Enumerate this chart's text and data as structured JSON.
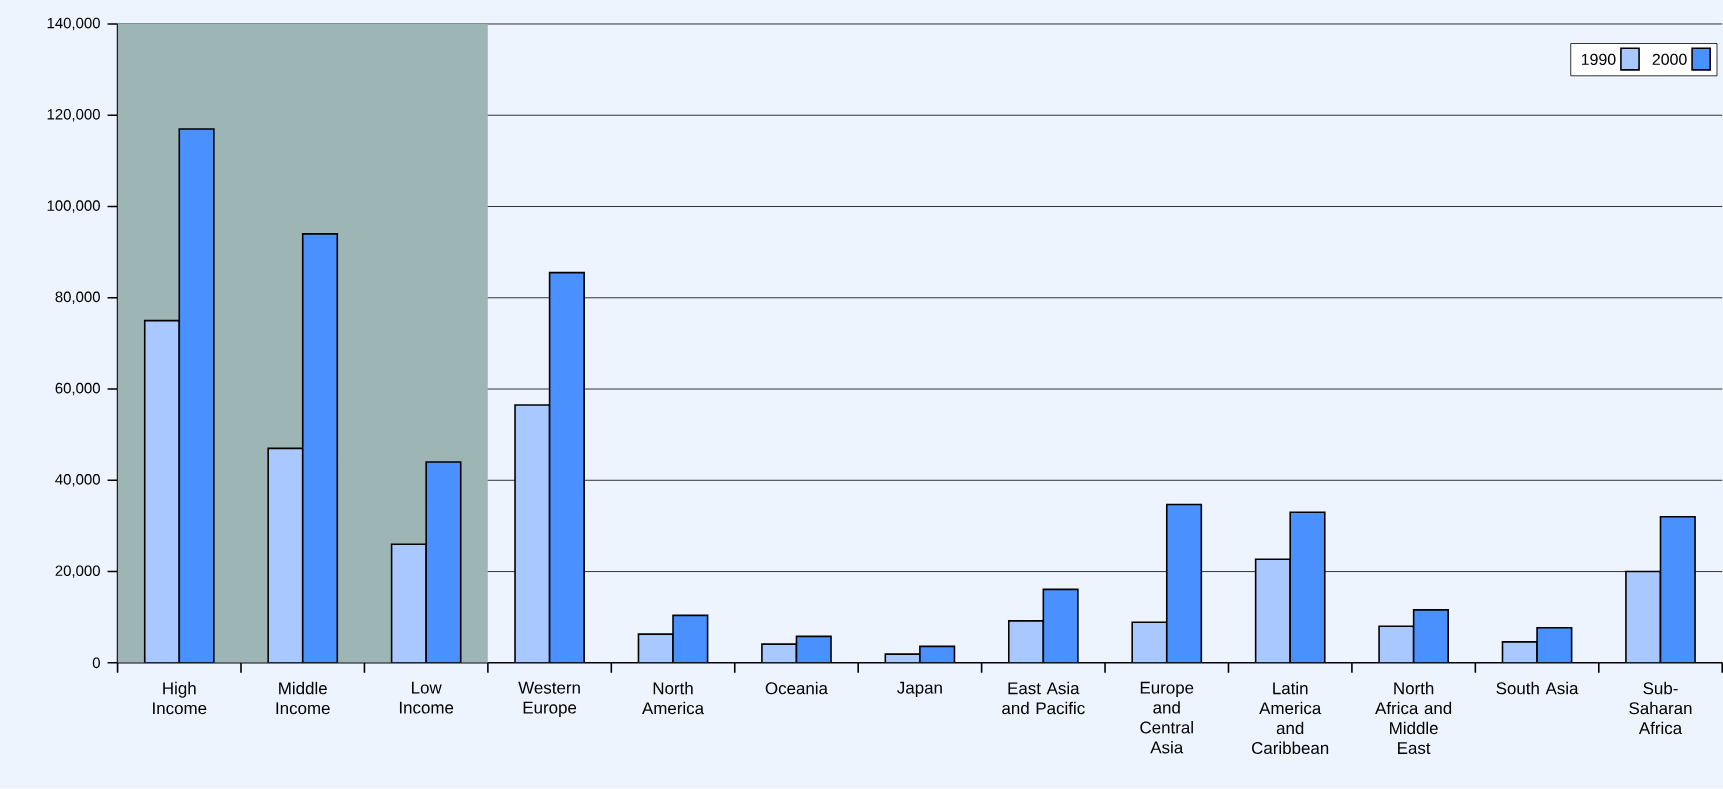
{
  "chart_data": {
    "type": "bar",
    "categories": [
      "High Income",
      "Middle Income",
      "Low Income",
      "Western Europe",
      "North America",
      "Oceania",
      "Japan",
      "East Asia and Pacific",
      "Europe and Central Asia",
      "Latin America and Caribbean",
      "North Africa and Middle East",
      "South Asia",
      "Sub-Saharan Africa"
    ],
    "series": [
      {
        "name": "1990",
        "color": "#a8c8ff",
        "values": [
          75000,
          47000,
          26000,
          56500,
          6300,
          4100,
          1900,
          9200,
          8900,
          22700,
          8000,
          4600,
          20000
        ]
      },
      {
        "name": "2000",
        "color": "#4a90ff",
        "values": [
          117000,
          94000,
          44000,
          85500,
          10400,
          5800,
          3600,
          16100,
          34700,
          33000,
          11600,
          7700,
          32000
        ]
      }
    ],
    "ylim": [
      0,
      140000
    ],
    "yticks": [
      0,
      {
        "value": 20000,
        "label": "20,000"
      },
      {
        "value": 40000,
        "label": "40,000"
      },
      {
        "value": 60000,
        "label": "60,000"
      },
      {
        "value": 80000,
        "label": "80,000"
      },
      {
        "value": 100000,
        "label": "100,000"
      },
      {
        "value": 120000,
        "label": "120,000"
      },
      {
        "value": 140000,
        "label": "140,000"
      }
    ],
    "bands": [
      {
        "axis": "x",
        "from": "High Income",
        "to": "Low Income",
        "color": "#9db5b5"
      }
    ],
    "grid": "y",
    "legend": "top right"
  }
}
